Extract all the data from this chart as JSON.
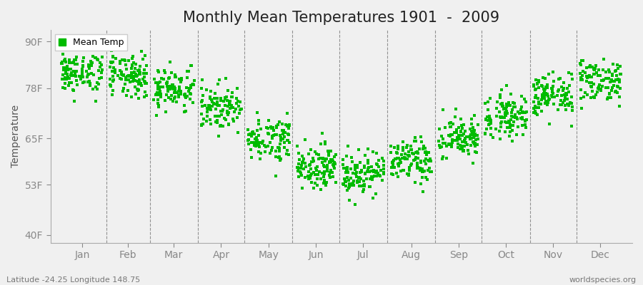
{
  "title": "Monthly Mean Temperatures 1901  -  2009",
  "ylabel": "Temperature",
  "xlabel_months": [
    "Jan",
    "Feb",
    "Mar",
    "Apr",
    "May",
    "Jun",
    "Jul",
    "Aug",
    "Sep",
    "Oct",
    "Nov",
    "Dec"
  ],
  "yticks": [
    40,
    53,
    65,
    78,
    90
  ],
  "ytick_labels": [
    "40F",
    "53F",
    "65F",
    "78F",
    "90F"
  ],
  "ylim": [
    38,
    93
  ],
  "legend_label": "Mean Temp",
  "dot_color": "#00BB00",
  "dot_size": 5,
  "background_color": "#f0f0f0",
  "plot_bg_color": "#f0f0f0",
  "bottom_left_text": "Latitude -24.25 Longitude 148.75",
  "bottom_right_text": "worldspecies.org",
  "title_fontsize": 15,
  "axis_fontsize": 10,
  "tick_fontsize": 10,
  "monthly_mean_temps_f": [
    82,
    81,
    78,
    73,
    65,
    58,
    56,
    59,
    65,
    71,
    76,
    80
  ],
  "monthly_std_f": [
    2.8,
    2.8,
    2.8,
    2.8,
    2.8,
    2.8,
    2.8,
    2.8,
    2.8,
    2.8,
    2.8,
    2.8
  ],
  "n_years": 109
}
